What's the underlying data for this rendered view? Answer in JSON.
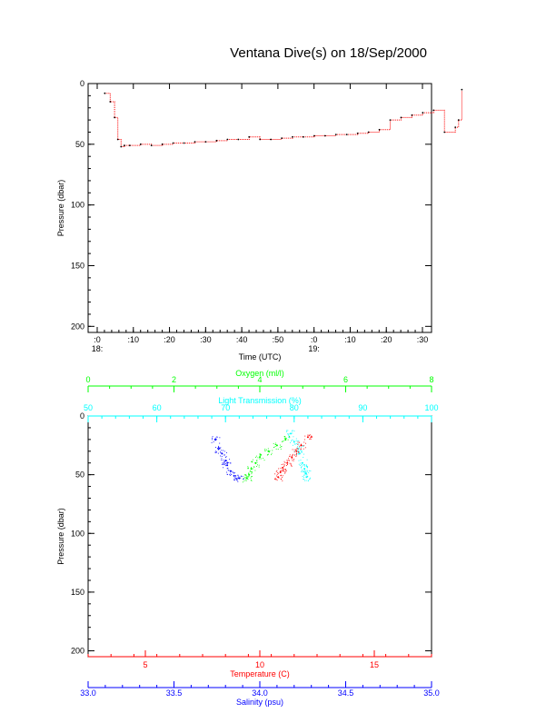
{
  "title": "Ventana Dive(s) on 18/Sep/2000",
  "colors": {
    "axis": "#000000",
    "time_series": "#ff0000",
    "temperature": "#ff0000",
    "salinity": "#0000ff",
    "oxygen": "#00ff00",
    "light": "#00ffff"
  },
  "chart_data": [
    {
      "type": "line",
      "name": "pressure-vs-time",
      "xlabel": "Time (UTC)",
      "ylabel": "Pressure (dbar)",
      "xlim": [
        -2,
        35
      ],
      "ylim": [
        0,
        205
      ],
      "y_reversed": true,
      "x_ticks": [
        {
          "v": 0,
          "label": ":0",
          "sub": "18:"
        },
        {
          "v": 10,
          "label": ":10",
          "sub": ""
        },
        {
          "v": 20,
          "label": ":20",
          "sub": ""
        },
        {
          "v": 30,
          "label": ":30",
          "sub": ""
        },
        {
          "v": 40,
          "label": ":40",
          "sub": ""
        },
        {
          "v": 50,
          "label": ":50",
          "sub": ""
        },
        {
          "v": 60,
          "label": ":0",
          "sub": "19:"
        },
        {
          "v": 70,
          "label": ":10",
          "sub": ""
        },
        {
          "v": 80,
          "label": ":20",
          "sub": ""
        },
        {
          "v": 90,
          "label": ":30",
          "sub": ""
        }
      ],
      "y_ticks": [
        0,
        50,
        100,
        150,
        200
      ],
      "x": [
        0.7,
        1.2,
        1.6,
        1.9,
        2.2,
        2.5,
        3,
        4,
        5,
        6,
        7,
        8,
        9,
        10,
        11,
        12,
        13,
        14,
        15,
        16,
        17,
        18,
        19,
        20,
        21,
        22,
        23,
        24,
        25,
        26,
        27,
        28,
        29,
        30,
        31,
        32,
        33,
        33.3,
        33.6
      ],
      "y": [
        8,
        15,
        28,
        46,
        52,
        51,
        51,
        50,
        51,
        50,
        49,
        49,
        48,
        48,
        47,
        46,
        46,
        44,
        46,
        46,
        45,
        44,
        44,
        43,
        43,
        42,
        42,
        41,
        40,
        38,
        30,
        28,
        26,
        24,
        22,
        40,
        36,
        30,
        5
      ]
    },
    {
      "type": "scatter",
      "name": "profiles",
      "ylabel": "Pressure (dbar)",
      "ylim": [
        0,
        205
      ],
      "y_reversed": true,
      "y_ticks": [
        0,
        50,
        100,
        150,
        200
      ],
      "axes": {
        "oxygen": {
          "label": "Oxygen (ml/l)",
          "range": [
            0,
            8
          ],
          "ticks": [
            0,
            2,
            4,
            6,
            8
          ],
          "position": "top"
        },
        "light": {
          "label": "Light Transmission (%)",
          "range": [
            50,
            100
          ],
          "ticks": [
            50,
            60,
            70,
            80,
            90,
            100
          ],
          "position": "top"
        },
        "temperature": {
          "label": "Temperature (C)",
          "range": [
            2.5,
            17.5
          ],
          "ticks": [
            5,
            10,
            15
          ],
          "position": "bottom"
        },
        "salinity": {
          "label": "Salinity (psu)",
          "range": [
            33.0,
            35.0
          ],
          "ticks": [
            "33.0",
            "33.5",
            "34.0",
            "34.5",
            "35.0"
          ],
          "position": "bottom"
        }
      },
      "series": [
        {
          "key": "salinity",
          "units": "psu",
          "x": [
            33.74,
            33.76,
            33.78,
            33.8,
            33.81,
            33.83,
            33.85,
            33.88
          ],
          "y": [
            20,
            28,
            32,
            38,
            42,
            47,
            51,
            53
          ]
        },
        {
          "key": "oxygen",
          "units": "ml/l",
          "x": [
            4.6,
            4.4,
            4.2,
            4.0,
            3.9,
            3.8,
            3.75,
            3.7
          ],
          "y": [
            20,
            25,
            30,
            35,
            40,
            45,
            50,
            53
          ]
        },
        {
          "key": "light",
          "units": "%",
          "x": [
            79.5,
            80.0,
            80.6,
            80.8,
            81.2,
            81.5,
            81.7,
            81.8
          ],
          "y": [
            15,
            22,
            28,
            32,
            40,
            45,
            49,
            52
          ]
        },
        {
          "key": "temperature",
          "units": "C",
          "x": [
            12.1,
            11.8,
            11.6,
            11.4,
            11.2,
            11.0,
            10.9,
            10.8
          ],
          "y": [
            18,
            25,
            30,
            35,
            40,
            44,
            48,
            52
          ]
        }
      ]
    }
  ]
}
